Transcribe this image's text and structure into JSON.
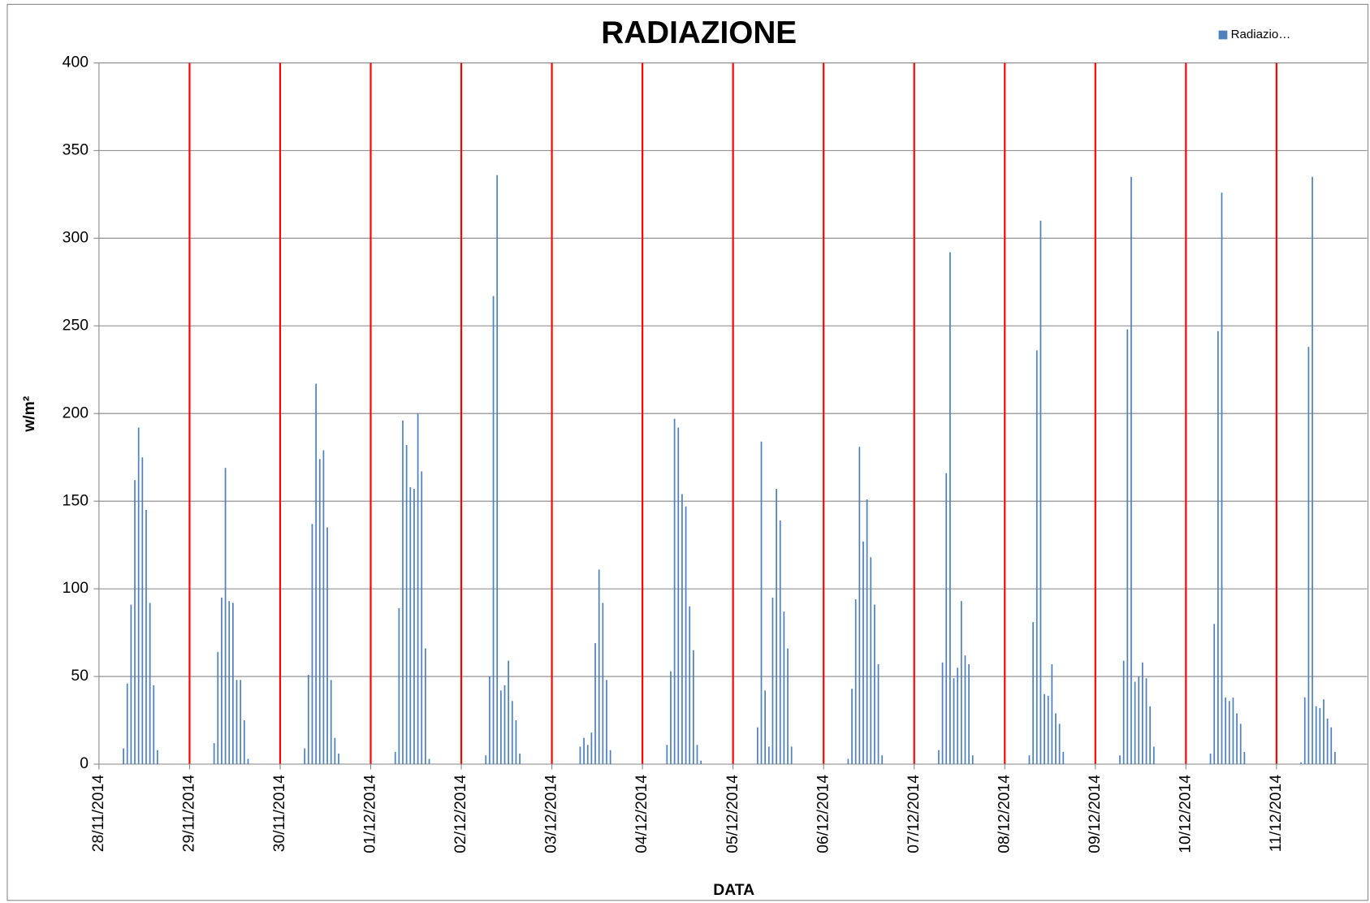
{
  "chart_data": {
    "type": "bar",
    "title": "RADIAZIONE",
    "x_label": "DATA",
    "y_label": "w/m²",
    "categories": [
      "28/11/2014",
      null,
      null,
      null,
      null,
      null,
      null,
      null,
      null,
      null,
      null,
      null,
      null,
      null,
      null,
      null,
      null,
      null,
      null,
      null,
      null,
      null,
      null,
      null,
      "29/11/2014",
      null,
      null,
      null,
      null,
      null,
      null,
      null,
      null,
      null,
      null,
      null,
      null,
      null,
      null,
      null,
      null,
      null,
      null,
      null,
      null,
      null,
      null,
      null,
      "30/11/2014",
      null,
      null,
      null,
      null,
      null,
      null,
      null,
      null,
      null,
      null,
      null,
      null,
      null,
      null,
      null,
      null,
      null,
      null,
      null,
      null,
      null,
      null,
      null,
      "01/12/2014",
      null,
      null,
      null,
      null,
      null,
      null,
      null,
      null,
      null,
      null,
      null,
      null,
      null,
      null,
      null,
      null,
      null,
      null,
      null,
      null,
      null,
      null,
      null,
      "02/12/2014",
      null,
      null,
      null,
      null,
      null,
      null,
      null,
      null,
      null,
      null,
      null,
      null,
      null,
      null,
      null,
      null,
      null,
      null,
      null,
      null,
      null,
      null,
      null,
      "03/12/2014",
      null,
      null,
      null,
      null,
      null,
      null,
      null,
      null,
      null,
      null,
      null,
      null,
      null,
      null,
      null,
      null,
      null,
      null,
      null,
      null,
      null,
      null,
      null,
      "04/12/2014",
      null,
      null,
      null,
      null,
      null,
      null,
      null,
      null,
      null,
      null,
      null,
      null,
      null,
      null,
      null,
      null,
      null,
      null,
      null,
      null,
      null,
      null,
      null,
      "05/12/2014",
      null,
      null,
      null,
      null,
      null,
      null,
      null,
      null,
      null,
      null,
      null,
      null,
      null,
      null,
      null,
      null,
      null,
      null,
      null,
      null,
      null,
      null,
      null,
      "06/12/2014",
      null,
      null,
      null,
      null,
      null,
      null,
      null,
      null,
      null,
      null,
      null,
      null,
      null,
      null,
      null,
      null,
      null,
      null,
      null,
      null,
      null,
      null,
      null,
      "07/12/2014",
      null,
      null,
      null,
      null,
      null,
      null,
      null,
      null,
      null,
      null,
      null,
      null,
      null,
      null,
      null,
      null,
      null,
      null,
      null,
      null,
      null,
      null,
      null,
      "08/12/2014",
      null,
      null,
      null,
      null,
      null,
      null,
      null,
      null,
      null,
      null,
      null,
      null,
      null,
      null,
      null,
      null,
      null,
      null,
      null,
      null,
      null,
      null,
      null,
      "09/12/2014",
      null,
      null,
      null,
      null,
      null,
      null,
      null,
      null,
      null,
      null,
      null,
      null,
      null,
      null,
      null,
      null,
      null,
      null,
      null,
      null,
      null,
      null,
      null,
      "10/12/2014",
      null,
      null,
      null,
      null,
      null,
      null,
      null,
      null,
      null,
      null,
      null,
      null,
      null,
      null,
      null,
      null,
      null,
      null,
      null,
      null,
      null,
      null,
      null,
      "11/12/2014",
      null,
      null,
      null,
      null,
      null,
      null,
      null,
      null,
      null,
      null,
      null,
      null,
      null,
      null,
      null,
      null,
      null,
      null,
      null,
      null,
      null,
      null,
      null
    ],
    "series": [
      {
        "name": "Radiazio…",
        "color": "#4f81bd",
        "values": [
          0,
          0,
          0,
          0,
          0,
          0,
          9,
          46,
          91,
          162,
          192,
          175,
          145,
          92,
          45,
          8,
          0,
          0,
          0,
          0,
          0,
          0,
          0,
          0,
          0,
          0,
          0,
          0,
          0,
          0,
          12,
          64,
          95,
          169,
          93,
          92,
          48,
          48,
          25,
          3,
          0,
          0,
          0,
          0,
          0,
          0,
          0,
          0,
          0,
          0,
          0,
          0,
          0,
          0,
          9,
          51,
          137,
          217,
          174,
          179,
          135,
          48,
          15,
          6,
          0,
          0,
          0,
          0,
          0,
          0,
          0,
          0,
          0,
          0,
          0,
          0,
          0,
          0,
          7,
          89,
          196,
          182,
          158,
          157,
          200,
          167,
          66,
          3,
          0,
          0,
          0,
          0,
          0,
          0,
          0,
          0,
          0,
          0,
          0,
          0,
          0,
          0,
          5,
          50,
          267,
          336,
          42,
          45,
          59,
          36,
          25,
          6,
          0,
          0,
          0,
          0,
          0,
          0,
          0,
          0,
          0,
          0,
          0,
          0,
          0,
          0,
          0,
          10,
          15,
          11,
          18,
          69,
          111,
          92,
          48,
          8,
          0,
          0,
          0,
          0,
          0,
          0,
          0,
          0,
          0,
          0,
          0,
          0,
          0,
          0,
          11,
          53,
          197,
          192,
          154,
          147,
          90,
          65,
          11,
          2,
          0,
          0,
          0,
          0,
          0,
          0,
          0,
          0,
          0,
          0,
          0,
          0,
          0,
          0,
          21,
          184,
          42,
          10,
          95,
          157,
          139,
          87,
          66,
          10,
          0,
          0,
          0,
          0,
          0,
          0,
          0,
          0,
          0,
          0,
          0,
          0,
          0,
          0,
          3,
          43,
          94,
          181,
          127,
          151,
          118,
          91,
          57,
          5,
          0,
          0,
          0,
          0,
          0,
          0,
          0,
          0,
          0,
          0,
          0,
          0,
          0,
          0,
          8,
          58,
          166,
          292,
          49,
          55,
          93,
          62,
          57,
          5,
          0,
          0,
          0,
          0,
          0,
          0,
          0,
          0,
          0,
          0,
          0,
          0,
          0,
          0,
          5,
          81,
          236,
          310,
          40,
          39,
          57,
          29,
          23,
          7,
          0,
          0,
          0,
          0,
          0,
          0,
          0,
          0,
          0,
          0,
          0,
          0,
          0,
          0,
          5,
          59,
          248,
          335,
          47,
          50,
          58,
          49,
          33,
          10,
          0,
          0,
          0,
          0,
          0,
          0,
          0,
          0,
          0,
          0,
          0,
          0,
          0,
          0,
          6,
          80,
          247,
          326,
          38,
          36,
          38,
          29,
          23,
          7,
          0,
          0,
          0,
          0,
          0,
          0,
          0,
          0,
          0,
          0,
          0,
          0,
          0,
          0,
          1,
          38,
          238,
          335,
          33,
          32,
          37,
          26,
          21,
          7,
          0,
          0,
          0,
          0,
          0,
          0,
          0,
          0
        ]
      }
    ],
    "ylim": [
      0,
      400
    ],
    "yticks": [
      0,
      50,
      100,
      150,
      200,
      250,
      300,
      350,
      400
    ],
    "grid": true,
    "grid_color": "#868686",
    "x_grid_color": "#ff0000",
    "legend": "top-right"
  }
}
